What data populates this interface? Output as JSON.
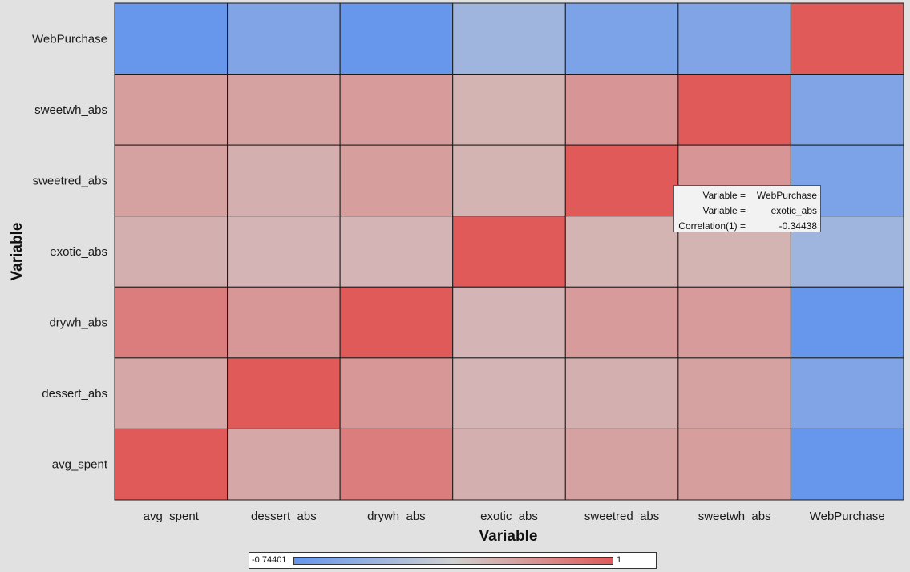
{
  "chart_data": {
    "type": "heatmap",
    "xlabel": "Variable",
    "ylabel": "Variable",
    "x_categories": [
      "avg_spent",
      "dessert_abs",
      "drywh_abs",
      "exotic_abs",
      "sweetred_abs",
      "sweetwh_abs",
      "WebPurchase"
    ],
    "y_categories_top_to_bottom": [
      "WebPurchase",
      "sweetwh_abs",
      "sweetred_abs",
      "exotic_abs",
      "drywh_abs",
      "dessert_abs",
      "avg_spent"
    ],
    "values": [
      [
        -0.72,
        -0.55,
        -0.72,
        -0.34,
        -0.58,
        -0.55,
        1
      ],
      [
        0.42,
        0.4,
        0.45,
        0.25,
        0.5,
        1,
        -0.55
      ],
      [
        0.4,
        0.28,
        0.42,
        0.25,
        1,
        0.5,
        -0.58
      ],
      [
        0.28,
        0.24,
        0.24,
        1,
        0.25,
        0.25,
        -0.34
      ],
      [
        0.7,
        0.48,
        1,
        0.24,
        0.45,
        0.45,
        -0.72
      ],
      [
        0.35,
        1,
        0.48,
        0.24,
        0.28,
        0.4,
        -0.55
      ],
      [
        1,
        0.35,
        0.7,
        0.28,
        0.4,
        0.42,
        -0.72
      ]
    ],
    "color_scale": {
      "min": -0.74401,
      "max": 1,
      "min_label": "-0.74401",
      "max_label": "1",
      "low_color": "#6495ed",
      "mid_color": "#d0d0d0",
      "high_color": "#e05a5a"
    },
    "tooltip": {
      "rows": [
        {
          "key": "Variable =",
          "value": "WebPurchase"
        },
        {
          "key": "Variable =",
          "value": "exotic_abs"
        },
        {
          "key": "Correlation(1) =",
          "value": "-0.34438"
        }
      ]
    }
  }
}
